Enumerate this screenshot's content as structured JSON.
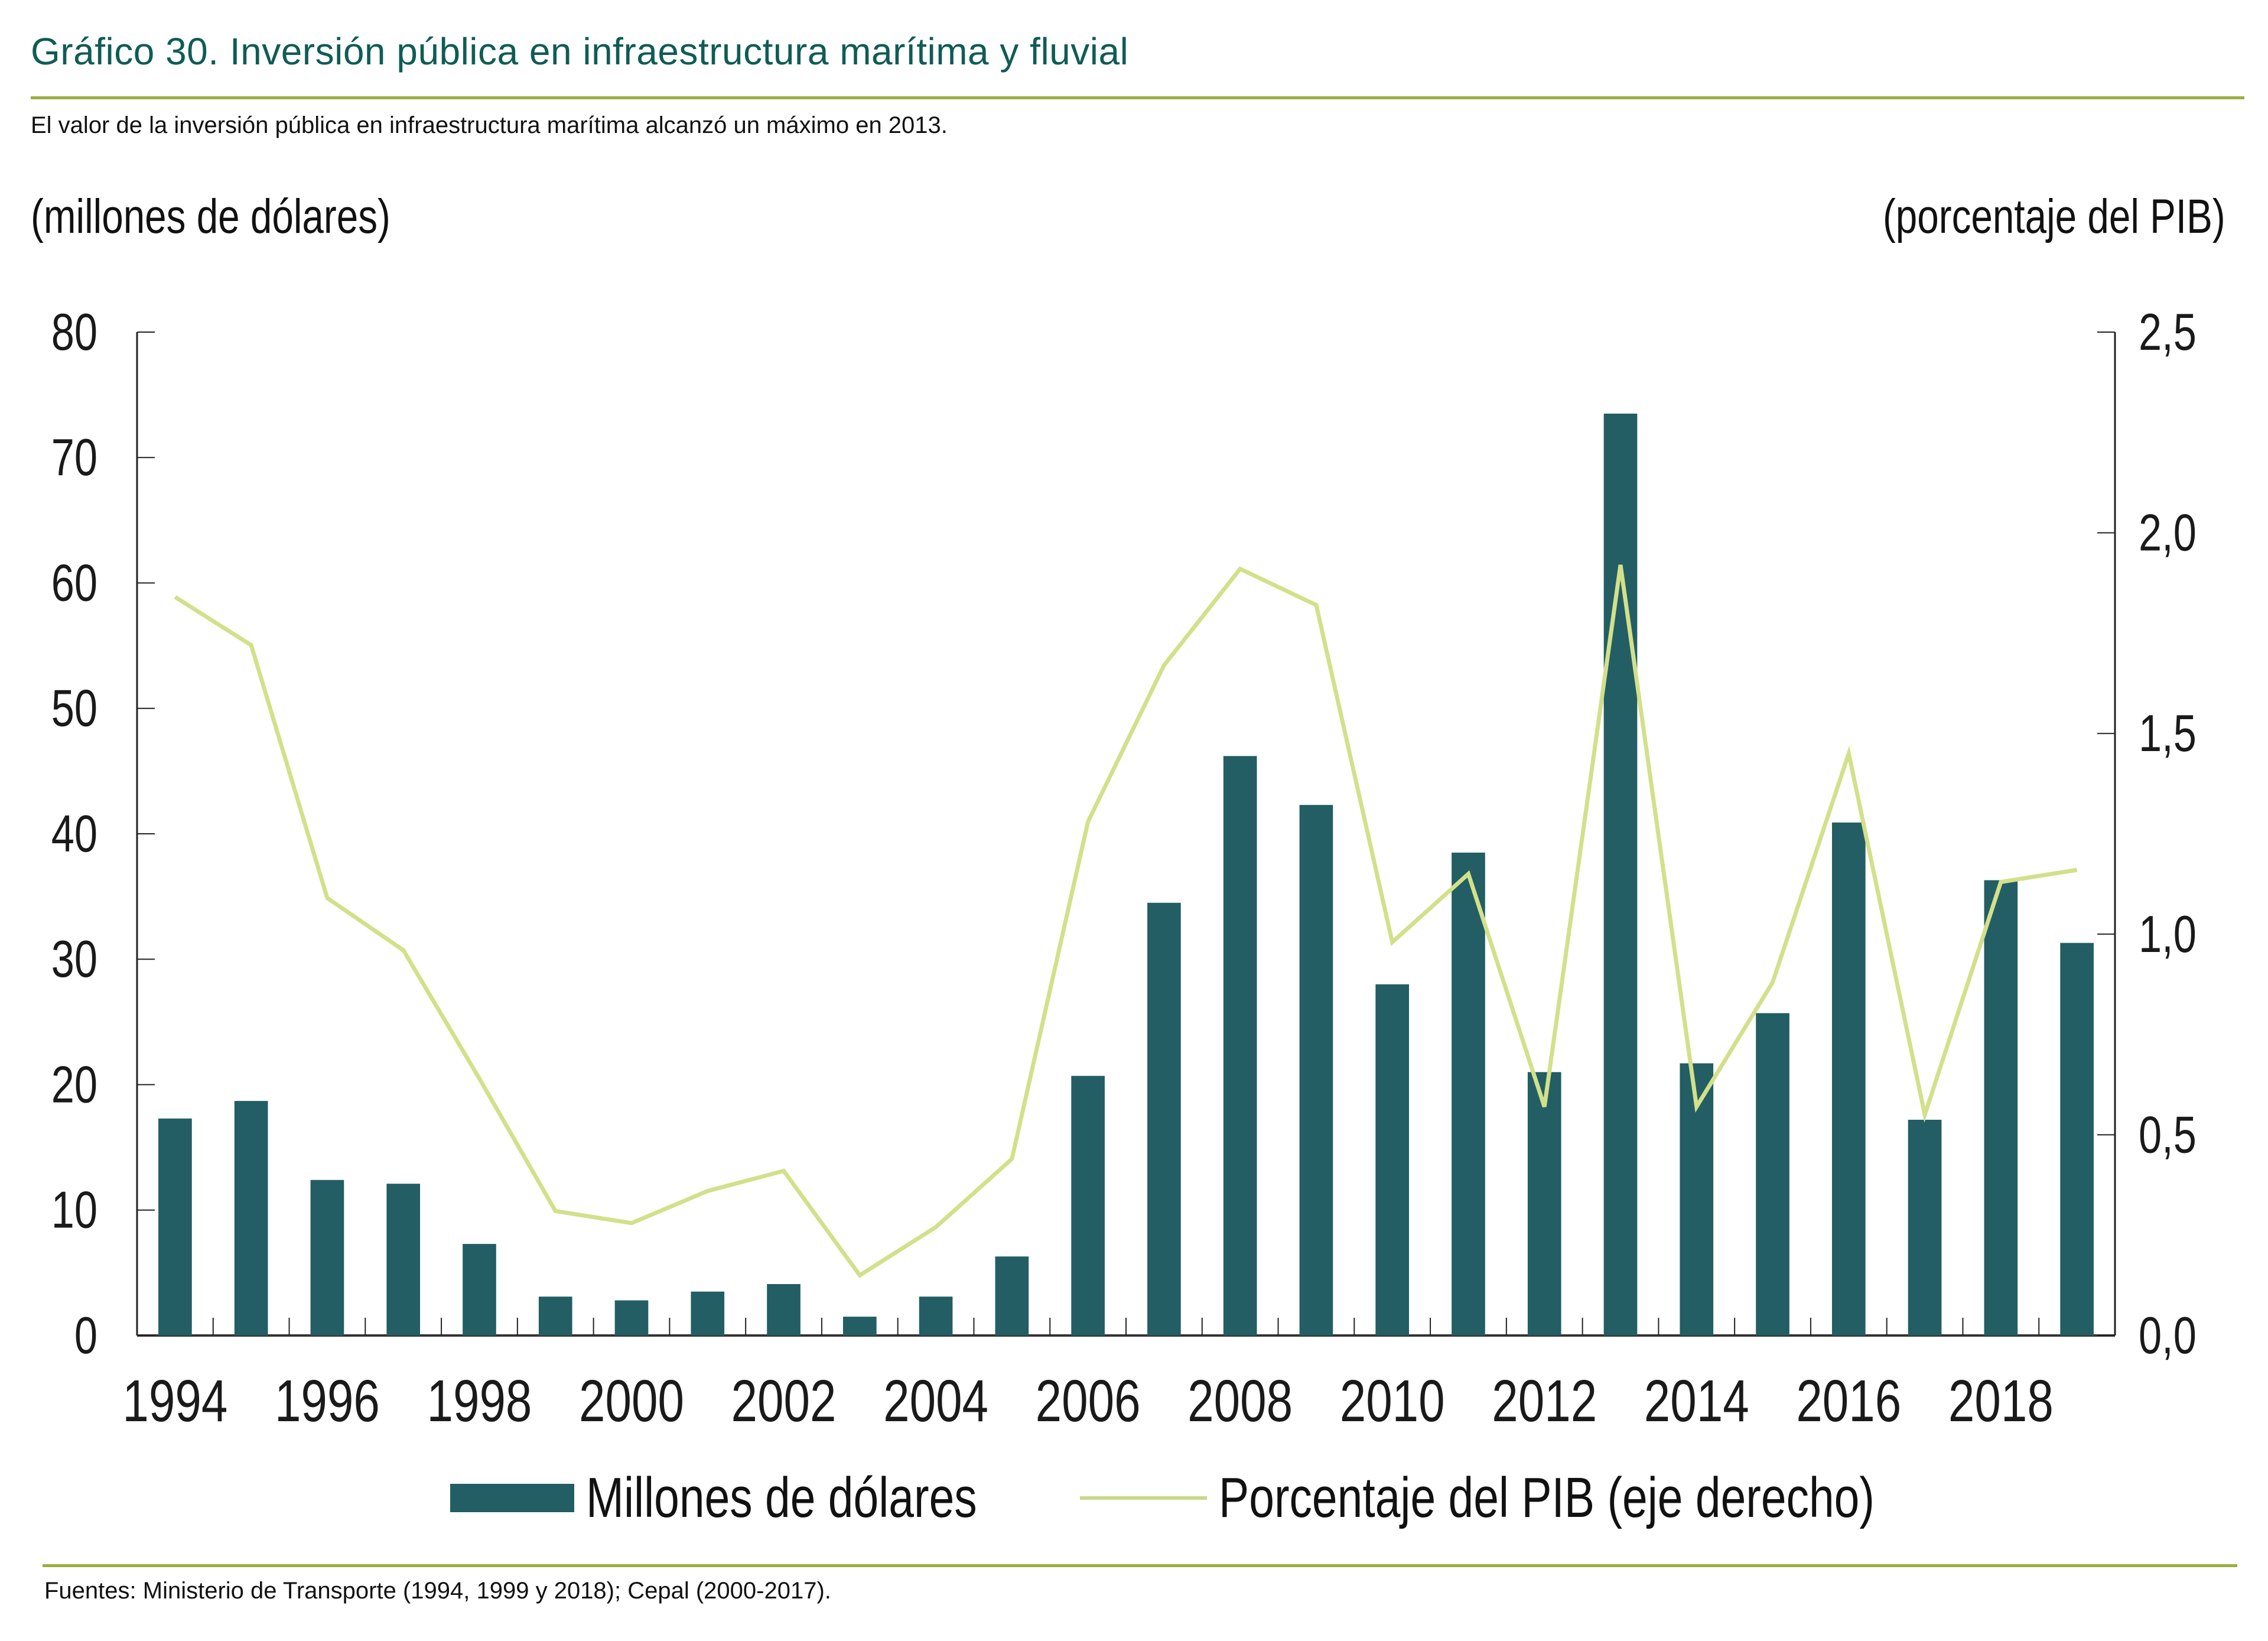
{
  "header": {
    "title": "Gráfico 30. Inversión pública en infraestructura marítima y fluvial",
    "subtitle": "El valor de la inversión pública en infraestructura marítima alcanzó un máximo en 2013."
  },
  "footer": {
    "source": "Fuentes: Ministerio de Transporte (1994, 1999 y 2018); Cepal (2000-2017)."
  },
  "colors": {
    "bar": "#225e64",
    "line": "#d3e08a",
    "rule": "#9aae3e",
    "title": "#0f5c55"
  },
  "chart_data": {
    "type": "bar",
    "title": "Gráfico 30. Inversión pública en infraestructura marítima y fluvial",
    "ylabel_left": "(millones de dólares)",
    "ylabel_right": "(porcentaje del PIB)",
    "xlabel": "",
    "ylim_left": [
      0,
      80
    ],
    "ylim_right": [
      0,
      2.5
    ],
    "yticks_left": [
      "0",
      "10",
      "20",
      "30",
      "40",
      "50",
      "60",
      "70",
      "80"
    ],
    "yticks_right": [
      "0,0",
      "0,5",
      "1,0",
      "1,5",
      "2,0",
      "2,5"
    ],
    "x": [
      1994,
      1995,
      1996,
      1997,
      1998,
      1999,
      2000,
      2001,
      2002,
      2003,
      2004,
      2005,
      2006,
      2007,
      2008,
      2009,
      2010,
      2011,
      2012,
      2013,
      2014,
      2015,
      2016,
      2017,
      2018,
      2019
    ],
    "xtick_labels": [
      "1994",
      "1996",
      "1998",
      "2000",
      "2002",
      "2004",
      "2006",
      "2008",
      "2010",
      "2012",
      "2014",
      "2016",
      "2018"
    ],
    "grid": false,
    "legend_position": "bottom",
    "series": [
      {
        "name": "Millones de dólares",
        "type": "bar",
        "axis": "left",
        "values": [
          17.3,
          18.7,
          12.4,
          12.1,
          7.3,
          3.1,
          2.8,
          3.5,
          4.1,
          1.5,
          3.1,
          6.3,
          20.7,
          34.5,
          46.2,
          42.3,
          28.0,
          38.5,
          21.0,
          73.5,
          21.7,
          25.7,
          40.9,
          17.2,
          36.3,
          31.3
        ]
      },
      {
        "name": "Porcentaje del PIB (eje derecho)",
        "type": "line",
        "axis": "right",
        "values": [
          1.84,
          1.72,
          1.09,
          0.96,
          0.64,
          0.31,
          0.28,
          0.36,
          0.41,
          0.15,
          0.27,
          0.44,
          1.28,
          1.67,
          1.91,
          1.82,
          0.98,
          1.15,
          0.57,
          1.92,
          0.57,
          0.88,
          1.45,
          0.55,
          1.13,
          1.16
        ]
      }
    ]
  }
}
